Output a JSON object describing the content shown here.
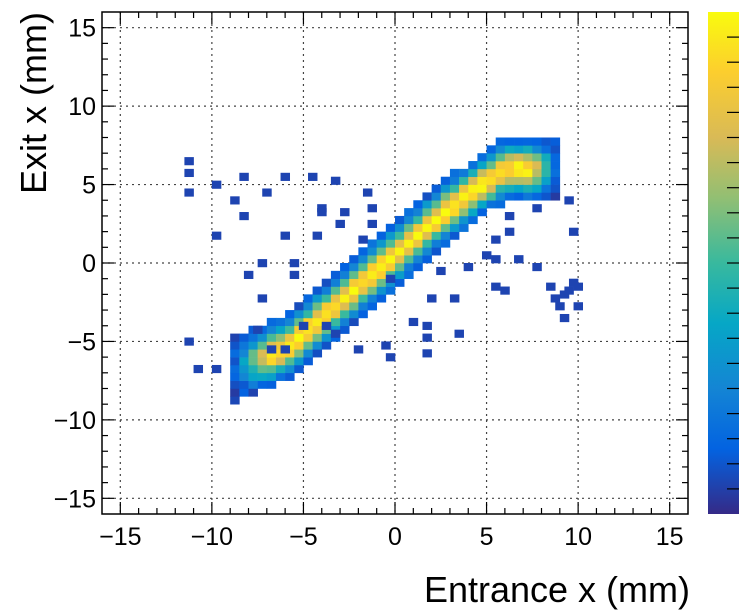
{
  "chart_data": {
    "type": "heatmap",
    "title": "",
    "xlabel": "Entrance x (mm)",
    "ylabel": "Exit x (mm)",
    "xlim": [
      -16,
      16
    ],
    "ylim": [
      -16,
      16
    ],
    "x_ticks": [
      -15,
      -10,
      -5,
      0,
      5,
      10,
      15
    ],
    "y_ticks": [
      -15,
      -10,
      -5,
      0,
      5,
      10,
      15
    ],
    "x_tick_labels": [
      "−15",
      "−10",
      "−5",
      "0",
      "5",
      "10",
      "15"
    ],
    "y_tick_labels": [
      "−15",
      "−10",
      "−5",
      "0",
      "5",
      "10",
      "15"
    ],
    "bin_size": 0.5,
    "grid": true,
    "colorbar": {
      "position": "right",
      "palette": "kBird",
      "tick_labels_visible": false
    },
    "band": {
      "description_points": [
        {
          "x": -8.5,
          "y": -6.5
        },
        {
          "x": -6,
          "y": -5.5
        },
        {
          "x": -3,
          "y": -2.5
        },
        {
          "x": 0,
          "y": 0.5
        },
        {
          "x": 3,
          "y": 3.5
        },
        {
          "x": 6,
          "y": 6
        }
      ],
      "x_range": [
        -9,
        9
      ],
      "intensity_profile": "peaked along diagonal y ≈ x + 0.5, half-width about 2 mm"
    },
    "isolated_bins": [
      [
        -11.25,
        6.5
      ],
      [
        -11.25,
        5.75
      ],
      [
        -11.25,
        4.5
      ],
      [
        -9.75,
        5.0
      ],
      [
        -8.25,
        5.5
      ],
      [
        -7.0,
        4.5
      ],
      [
        -8.75,
        4.0
      ],
      [
        -8.25,
        3.0
      ],
      [
        -9.75,
        1.75
      ],
      [
        -6.0,
        5.5
      ],
      [
        -4.5,
        5.5
      ],
      [
        -3.25,
        5.25
      ],
      [
        -4.0,
        3.5
      ],
      [
        -4.0,
        3.25
      ],
      [
        -2.75,
        3.25
      ],
      [
        -1.5,
        4.5
      ],
      [
        -1.25,
        3.5
      ],
      [
        -1.25,
        2.5
      ],
      [
        -3.0,
        2.5
      ],
      [
        -4.25,
        1.75
      ],
      [
        -6.0,
        1.75
      ],
      [
        -8.0,
        -0.75
      ],
      [
        -7.25,
        0.0
      ],
      [
        -7.25,
        -2.25
      ],
      [
        -5.5,
        0.0
      ],
      [
        -5.5,
        -0.75
      ],
      [
        -9.75,
        -6.75
      ],
      [
        -10.75,
        -6.75
      ],
      [
        -11.25,
        -5.0
      ],
      [
        -7.5,
        -4.25
      ],
      [
        -5.0,
        -4.0
      ],
      [
        -3.75,
        -4.0
      ],
      [
        -2.0,
        -5.5
      ],
      [
        -0.5,
        -5.25
      ],
      [
        -0.25,
        -6.0
      ],
      [
        1.0,
        -3.75
      ],
      [
        2.0,
        -2.25
      ],
      [
        1.75,
        -4.0
      ],
      [
        1.75,
        -4.75
      ],
      [
        1.75,
        -5.75
      ],
      [
        3.25,
        -2.25
      ],
      [
        3.5,
        -4.5
      ],
      [
        2.5,
        -0.5
      ],
      [
        5.5,
        1.5
      ],
      [
        5.5,
        0.25
      ],
      [
        6.25,
        2.0
      ],
      [
        6.25,
        3.0
      ],
      [
        7.75,
        3.5
      ],
      [
        9.5,
        4.0
      ],
      [
        9.75,
        2.0
      ],
      [
        6.75,
        0.25
      ],
      [
        7.75,
        -0.25
      ],
      [
        5.5,
        -1.5
      ],
      [
        6.0,
        -1.75
      ],
      [
        8.5,
        -1.5
      ],
      [
        8.75,
        -2.25
      ],
      [
        9.25,
        -2.0
      ],
      [
        10.0,
        -1.5
      ],
      [
        9.75,
        -1.25
      ],
      [
        9.5,
        -1.75
      ],
      [
        9.25,
        -3.5
      ],
      [
        9.0,
        -2.75
      ],
      [
        10.0,
        -2.75
      ],
      [
        4.0,
        -0.25
      ],
      [
        5.0,
        0.5
      ],
      [
        -6.75,
        -5.5
      ],
      [
        -6.0,
        -5.5
      ],
      [
        -3.25,
        -4.5
      ],
      [
        -1.75,
        1.5
      ],
      [
        -0.25,
        -1.0
      ]
    ]
  }
}
